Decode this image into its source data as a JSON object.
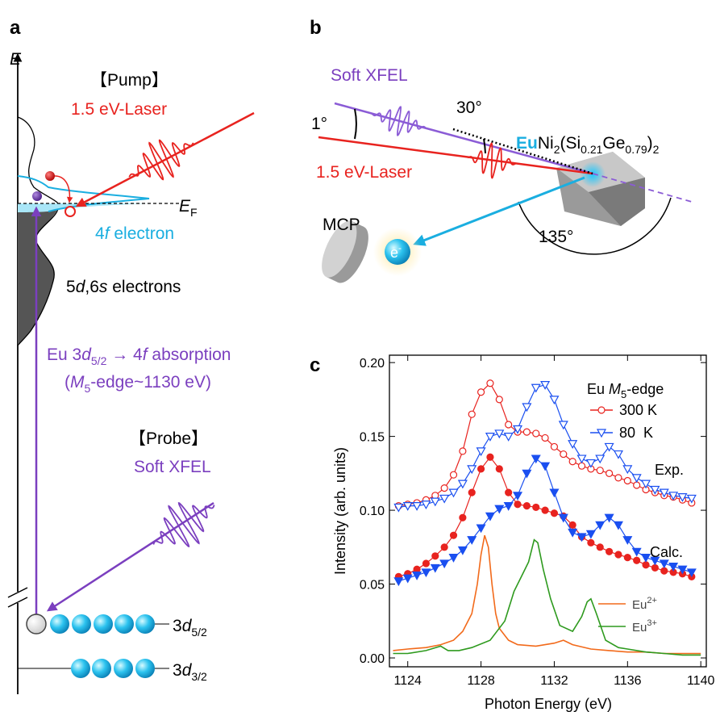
{
  "panel_a": {
    "label": "a",
    "energy_axis": "E",
    "pump": {
      "title": "【Pump】",
      "laser": "1.5 eV-Laser"
    },
    "fermi": [
      "E",
      "F"
    ],
    "f_electron": [
      "4",
      "f",
      " electron"
    ],
    "sd_electrons": [
      "5",
      "d",
      ",6",
      "s",
      " electrons"
    ],
    "absorption": [
      "Eu 3",
      "d",
      "5/2",
      " → 4",
      "f",
      " absorption"
    ],
    "edge": [
      "(",
      "M",
      "5",
      "-edge~1130 eV)"
    ],
    "probe": {
      "title": "【Probe】",
      "xfel": "Soft XFEL"
    },
    "levels": [
      [
        "3",
        "d",
        "5/2"
      ],
      [
        "3",
        "d",
        "3/2"
      ]
    ]
  },
  "panel_b": {
    "label": "b",
    "xfel": "Soft XFEL",
    "angle_30": "30°",
    "angle_1": "1°",
    "compound": [
      "Eu",
      "Ni",
      "2",
      "(Si",
      "0.21",
      "Ge",
      "0.79",
      ")",
      "2"
    ],
    "laser": "1.5 eV-Laser",
    "detector": "MCP",
    "electron": [
      "e",
      "-"
    ],
    "angle_135": "135°"
  },
  "chart_data": {
    "type": "line",
    "panel_label": "c",
    "xlabel": "Photon Energy (eV)",
    "ylabel": "Intensity (arb. units)",
    "xlim": [
      1123,
      1140.3
    ],
    "ylim": [
      -0.006,
      0.205
    ],
    "xticks": [
      1124,
      1128,
      1132,
      1136,
      1140
    ],
    "yticks": [
      {
        "value": 0,
        "label": "0.00"
      },
      {
        "value": 0.05,
        "label": "0.05"
      },
      {
        "value": 0.1,
        "label": "0.10"
      },
      {
        "value": 0.15,
        "label": "0.15"
      },
      {
        "value": 0.2,
        "label": "0.20"
      }
    ],
    "legend_title": [
      "Eu ",
      "M",
      "5",
      "-edge"
    ],
    "annotations": [
      "Exp.",
      "Calc."
    ],
    "series": [
      {
        "name": "300 K",
        "color": "#e8231f",
        "marker": "circle",
        "filled": false,
        "x": [
          1123.5,
          1124,
          1124.5,
          1125,
          1125.5,
          1126,
          1126.5,
          1127,
          1127.5,
          1128,
          1128.5,
          1129,
          1129.5,
          1130,
          1130.5,
          1131,
          1131.5,
          1132,
          1132.5,
          1133,
          1133.5,
          1134,
          1134.5,
          1135,
          1135.5,
          1136,
          1136.5,
          1137,
          1137.5,
          1138,
          1138.5,
          1139,
          1139.5
        ],
        "values": [
          0.103,
          0.104,
          0.105,
          0.107,
          0.11,
          0.115,
          0.124,
          0.14,
          0.165,
          0.18,
          0.186,
          0.175,
          0.158,
          0.153,
          0.153,
          0.152,
          0.149,
          0.143,
          0.138,
          0.133,
          0.13,
          0.128,
          0.127,
          0.125,
          0.122,
          0.12,
          0.117,
          0.114,
          0.112,
          0.11,
          0.109,
          0.107,
          0.105
        ]
      },
      {
        "name": "80  K",
        "color": "#1a4ff0",
        "marker": "triangle",
        "filled": false,
        "x": [
          1123.5,
          1124,
          1124.5,
          1125,
          1125.5,
          1126,
          1126.5,
          1127,
          1127.5,
          1128,
          1128.5,
          1129,
          1129.5,
          1130,
          1130.5,
          1131,
          1131.5,
          1132,
          1132.5,
          1133,
          1133.5,
          1134,
          1134.5,
          1135,
          1135.5,
          1136,
          1136.5,
          1137,
          1137.5,
          1138,
          1138.5,
          1139,
          1139.5
        ],
        "values": [
          0.102,
          0.103,
          0.103,
          0.104,
          0.106,
          0.108,
          0.112,
          0.118,
          0.128,
          0.14,
          0.15,
          0.152,
          0.15,
          0.155,
          0.17,
          0.183,
          0.185,
          0.175,
          0.158,
          0.145,
          0.135,
          0.132,
          0.135,
          0.143,
          0.138,
          0.128,
          0.122,
          0.118,
          0.114,
          0.112,
          0.11,
          0.109,
          0.108
        ]
      },
      {
        "color": "#e8231f",
        "marker": "circle",
        "filled": true,
        "x": [
          1123.5,
          1124,
          1124.5,
          1125,
          1125.5,
          1126,
          1126.5,
          1127,
          1127.5,
          1128,
          1128.5,
          1129,
          1129.5,
          1130,
          1130.5,
          1131,
          1131.5,
          1132,
          1132.5,
          1133,
          1133.5,
          1134,
          1134.5,
          1135,
          1135.5,
          1136,
          1136.5,
          1137,
          1137.5,
          1138,
          1138.5,
          1139,
          1139.5
        ],
        "values": [
          0.055,
          0.057,
          0.06,
          0.064,
          0.069,
          0.075,
          0.083,
          0.095,
          0.112,
          0.128,
          0.136,
          0.128,
          0.112,
          0.104,
          0.103,
          0.102,
          0.1,
          0.098,
          0.096,
          0.09,
          0.082,
          0.078,
          0.075,
          0.072,
          0.07,
          0.068,
          0.066,
          0.063,
          0.061,
          0.059,
          0.058,
          0.057,
          0.055
        ]
      },
      {
        "color": "#1a4ff0",
        "marker": "triangle",
        "filled": true,
        "x": [
          1123.5,
          1124,
          1124.5,
          1125,
          1125.5,
          1126,
          1126.5,
          1127,
          1127.5,
          1128,
          1128.5,
          1129,
          1129.5,
          1130,
          1130.5,
          1131,
          1131.5,
          1132,
          1132.5,
          1133,
          1133.5,
          1134,
          1134.5,
          1135,
          1135.5,
          1136,
          1136.5,
          1137,
          1137.5,
          1138,
          1138.5,
          1139,
          1139.5
        ],
        "values": [
          0.052,
          0.054,
          0.056,
          0.058,
          0.061,
          0.064,
          0.068,
          0.073,
          0.08,
          0.088,
          0.096,
          0.101,
          0.103,
          0.11,
          0.125,
          0.135,
          0.13,
          0.112,
          0.095,
          0.085,
          0.082,
          0.084,
          0.09,
          0.095,
          0.09,
          0.08,
          0.072,
          0.068,
          0.066,
          0.064,
          0.062,
          0.06,
          0.058
        ]
      },
      {
        "name_parts": [
          "Eu",
          "2+"
        ],
        "color": "#f26a1b",
        "x": [
          1123.2,
          1124,
          1125,
          1125.8,
          1126.5,
          1127,
          1127.5,
          1127.8,
          1128,
          1128.2,
          1128.4,
          1128.6,
          1128.8,
          1129,
          1129.5,
          1130,
          1131,
          1132,
          1132.5,
          1133,
          1134,
          1135,
          1136,
          1137,
          1138,
          1139,
          1140
        ],
        "values": [
          0.005,
          0.006,
          0.007,
          0.009,
          0.012,
          0.018,
          0.03,
          0.05,
          0.07,
          0.083,
          0.075,
          0.05,
          0.03,
          0.02,
          0.012,
          0.009,
          0.008,
          0.01,
          0.012,
          0.009,
          0.006,
          0.005,
          0.004,
          0.004,
          0.003,
          0.003,
          0.003
        ]
      },
      {
        "name_parts": [
          "Eu",
          "3+"
        ],
        "color": "#2e9a1e",
        "x": [
          1123.2,
          1124,
          1125,
          1125.8,
          1126.2,
          1126.8,
          1127.5,
          1128.5,
          1129.3,
          1129.8,
          1130.2,
          1130.6,
          1130.9,
          1131.1,
          1131.4,
          1131.8,
          1132.3,
          1133,
          1133.5,
          1133.8,
          1134,
          1134.3,
          1134.8,
          1135.5,
          1136,
          1137,
          1138,
          1139,
          1140
        ],
        "values": [
          0.003,
          0.003,
          0.005,
          0.008,
          0.005,
          0.005,
          0.007,
          0.012,
          0.025,
          0.045,
          0.055,
          0.065,
          0.08,
          0.078,
          0.06,
          0.04,
          0.022,
          0.018,
          0.028,
          0.038,
          0.04,
          0.03,
          0.012,
          0.007,
          0.006,
          0.004,
          0.003,
          0.002,
          0.002
        ]
      }
    ]
  }
}
